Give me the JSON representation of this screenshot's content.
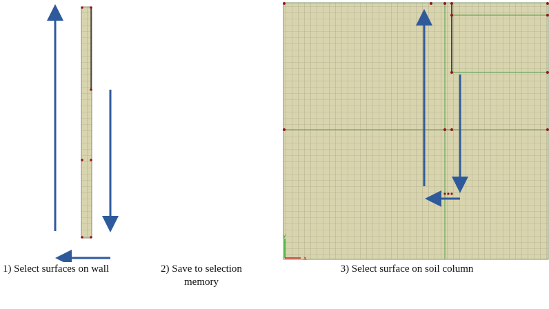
{
  "captions": [
    "1) Select surfaces on wall",
    "2) Save to selection memory",
    "3) Select surface on soil column"
  ],
  "axis_triad": {
    "x": "x",
    "y": "y"
  }
}
